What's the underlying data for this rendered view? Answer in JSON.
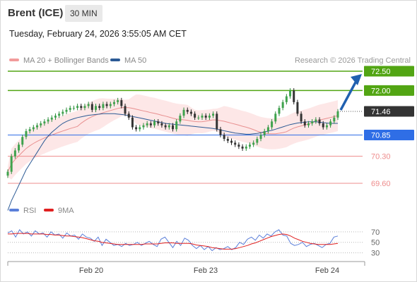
{
  "header": {
    "title": "Brent (ICE)",
    "timeframe": "30 MIN",
    "timestamp": "Tuesday, February 24, 2026 3:55:05 AM CET",
    "credit": "Research © 2026 Trading Central"
  },
  "colors": {
    "bollinger": "#f7a0a0",
    "bollinger_fill": "#fde3e3",
    "ma20": "#e89090",
    "ma50": "#2b5a95",
    "resistance": "#52a513",
    "current": "#333333",
    "pivot": "#2f6ee6",
    "support": "#ee8c8c",
    "rsi": "#5b7fd9",
    "rsi_ma": "#e02020",
    "arrow": "#2060b0"
  },
  "chart_data": [
    {
      "type": "candlestick",
      "title": "",
      "series": [
        {
          "name": "MA 20 + Bollinger Bands"
        },
        {
          "name": "MA 50"
        }
      ],
      "x_ticks": [
        "Feb 20",
        "Feb 23",
        "Feb 24"
      ],
      "ylim": [
        69.2,
        72.7
      ],
      "price_levels": [
        {
          "label": "72.50",
          "value": 72.5,
          "role": "resistance"
        },
        {
          "label": "72.00",
          "value": 72.0,
          "role": "resistance"
        },
        {
          "label": "71.46",
          "value": 71.46,
          "role": "current"
        },
        {
          "label": "70.85",
          "value": 70.85,
          "role": "pivot"
        },
        {
          "label": "70.30",
          "value": 70.3,
          "role": "support"
        },
        {
          "label": "69.60",
          "value": 69.6,
          "role": "support"
        }
      ],
      "close": [
        69.9,
        70.3,
        70.45,
        70.6,
        70.8,
        70.95,
        71.0,
        71.05,
        71.1,
        71.15,
        71.2,
        71.25,
        71.3,
        71.35,
        71.4,
        71.45,
        71.5,
        71.55,
        71.55,
        71.6,
        71.55,
        71.6,
        71.65,
        71.5,
        71.6,
        71.55,
        71.65,
        71.6,
        71.65,
        71.7,
        71.75,
        71.6,
        71.4,
        71.3,
        71.05,
        71.0,
        71.05,
        71.1,
        71.15,
        71.1,
        71.2,
        71.15,
        71.1,
        71.05,
        71.1,
        71.0,
        71.2,
        71.35,
        71.5,
        71.45,
        71.4,
        71.3,
        71.3,
        71.35,
        71.3,
        71.35,
        71.4,
        71.0,
        70.85,
        70.75,
        70.7,
        70.65,
        70.6,
        70.55,
        70.5,
        70.55,
        70.6,
        70.65,
        70.75,
        70.85,
        70.95,
        71.05,
        71.2,
        71.4,
        71.55,
        71.7,
        71.85,
        72.0,
        71.7,
        71.4,
        71.2,
        71.1,
        71.15,
        71.2,
        71.25,
        71.15,
        71.05,
        71.1,
        71.2,
        71.3,
        71.46
      ],
      "ma50": [
        68.9,
        69.15,
        69.35,
        69.55,
        69.75,
        69.95,
        70.1,
        70.25,
        70.4,
        70.55,
        70.7,
        70.82,
        70.92,
        71.0,
        71.08,
        71.15,
        71.2,
        71.24,
        71.27,
        71.3,
        71.32,
        71.34,
        71.36,
        71.37,
        71.38,
        71.39,
        71.4,
        71.4,
        71.4,
        71.4,
        71.39,
        71.38,
        71.37,
        71.35,
        71.33,
        71.31,
        71.29,
        71.27,
        71.25,
        71.23,
        71.21,
        71.19,
        71.17,
        71.15,
        71.14,
        71.13,
        71.12,
        71.11,
        71.1,
        71.09,
        71.08,
        71.07,
        71.06,
        71.05,
        71.04,
        71.03,
        71.02,
        71.0,
        70.98,
        70.96,
        70.94,
        70.92,
        70.9,
        70.89,
        70.88,
        70.87,
        70.87,
        70.88,
        70.89,
        70.91,
        70.93,
        70.95,
        70.97,
        71.0,
        71.03,
        71.06,
        71.09,
        71.12,
        71.14,
        71.16,
        71.17,
        71.18,
        71.19,
        71.19,
        71.19,
        71.18,
        71.17,
        71.16,
        71.15,
        71.15,
        71.15
      ],
      "projection": {
        "from": 71.46,
        "to": 72.5
      }
    },
    {
      "type": "line",
      "title": "",
      "series": [
        {
          "name": "RSI"
        },
        {
          "name": "9MA"
        }
      ],
      "y_ticks": [
        70,
        50,
        30
      ],
      "ylim": [
        20,
        82
      ],
      "rsi": [
        68,
        72,
        60,
        74,
        66,
        70,
        62,
        72,
        66,
        68,
        60,
        70,
        64,
        66,
        58,
        68,
        62,
        64,
        56,
        66,
        60,
        58,
        52,
        60,
        44,
        56,
        50,
        44,
        46,
        42,
        48,
        44,
        46,
        50,
        44,
        48,
        52,
        46,
        42,
        56,
        60,
        50,
        40,
        52,
        44,
        58,
        54,
        44,
        38,
        44,
        36,
        42,
        34,
        40,
        36,
        38,
        42,
        36,
        40,
        50,
        46,
        56,
        60,
        54,
        64,
        58,
        66,
        62,
        70,
        74,
        64,
        62,
        48,
        44,
        46,
        50,
        42,
        46,
        48,
        44,
        40,
        46,
        48,
        60,
        62
      ],
      "rsi_ma": [
        66,
        66,
        67,
        67,
        67,
        67,
        66,
        66,
        66,
        66,
        65,
        65,
        64,
        64,
        63,
        62,
        62,
        61,
        60,
        59,
        57,
        55,
        53,
        52,
        50,
        49,
        48,
        47,
        46,
        46,
        46,
        46,
        46,
        46,
        46,
        47,
        47,
        47,
        47,
        48,
        49,
        49,
        49,
        48,
        48,
        48,
        48,
        47,
        45,
        44,
        43,
        42,
        40,
        39,
        38,
        37,
        37,
        37,
        38,
        40,
        42,
        44,
        47,
        49,
        52,
        55,
        58,
        61,
        63,
        65,
        66,
        65,
        62,
        58,
        55,
        52,
        50,
        48,
        47,
        46,
        46,
        46,
        46,
        47,
        48
      ]
    }
  ]
}
